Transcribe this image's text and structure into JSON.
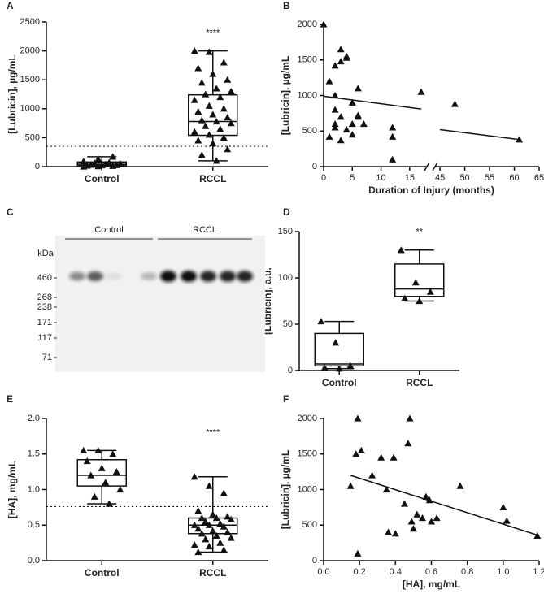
{
  "chart_data": [
    {
      "panel": "A",
      "type": "box",
      "ylabel": "[Lubricin], µg/mL",
      "categories": [
        "Control",
        "RCCL"
      ],
      "boxes": [
        {
          "min": 0,
          "q1": 20,
          "median": 40,
          "q3": 80,
          "max": 170
        },
        {
          "min": 100,
          "q1": 540,
          "median": 780,
          "q3": 1240,
          "max": 2000
        }
      ],
      "points": [
        [
          0,
          5,
          10,
          15,
          20,
          25,
          30,
          40,
          50,
          60,
          70,
          90,
          130,
          170
        ],
        [
          2000,
          1980,
          1800,
          1700,
          1600,
          1500,
          1450,
          1350,
          1300,
          1250,
          1200,
          1150,
          1050,
          1000,
          950,
          900,
          850,
          800,
          780,
          750,
          700,
          650,
          600,
          550,
          500,
          450,
          400,
          300,
          200,
          100
        ]
      ],
      "reference_line": 350,
      "annotation": "****",
      "ylim": [
        0,
        2500
      ],
      "yticks": [
        0,
        500,
        1000,
        1500,
        2000,
        2500
      ]
    },
    {
      "panel": "B",
      "type": "scatter",
      "ylabel": "[Lubricin], µg/mL",
      "xlabel": "Duration of Injury (months)",
      "x": [
        0,
        1,
        1,
        2,
        2,
        2,
        2,
        2,
        3,
        3,
        3,
        3,
        4,
        4,
        4,
        5,
        5,
        5,
        6,
        6,
        6,
        7,
        12,
        12,
        12,
        17,
        48,
        61
      ],
      "y": [
        2000,
        1200,
        420,
        1420,
        1000,
        800,
        550,
        600,
        1650,
        1480,
        370,
        700,
        1530,
        520,
        1550,
        450,
        900,
        600,
        1100,
        720,
        700,
        600,
        550,
        100,
        420,
        1050,
        880,
        380
      ],
      "trend_lines": [
        {
          "x": [
            0,
            17
          ],
          "y": [
            990,
            810
          ]
        },
        {
          "x": [
            45,
            61
          ],
          "y": [
            520,
            380
          ]
        }
      ],
      "xlim": [
        0,
        65
      ],
      "x_break": [
        18,
        44
      ],
      "xticks": [
        0,
        5,
        10,
        15,
        45,
        50,
        55,
        60,
        65
      ],
      "ylim": [
        0,
        2000
      ],
      "yticks": [
        0,
        500,
        1000,
        1500,
        2000
      ]
    },
    {
      "panel": "D",
      "type": "box",
      "ylabel": "[Lubricin], a.u.",
      "categories": [
        "Control",
        "RCCL"
      ],
      "boxes": [
        {
          "min": 2,
          "q1": 5,
          "median": 7,
          "q3": 40,
          "max": 53
        },
        {
          "min": 75,
          "q1": 80,
          "median": 88,
          "q3": 115,
          "max": 130
        }
      ],
      "points": [
        [
          53,
          30,
          5,
          3,
          2
        ],
        [
          130,
          95,
          85,
          78,
          75
        ]
      ],
      "annotation": "**",
      "ylim": [
        0,
        150
      ],
      "yticks": [
        0,
        50,
        100,
        150
      ]
    },
    {
      "panel": "E",
      "type": "box",
      "ylabel": "[HA], mg/mL",
      "categories": [
        "Control",
        "RCCL"
      ],
      "boxes": [
        {
          "min": 0.8,
          "q1": 1.05,
          "median": 1.2,
          "q3": 1.42,
          "max": 1.55
        },
        {
          "min": 0.12,
          "q1": 0.38,
          "median": 0.5,
          "q3": 0.6,
          "max": 1.18
        }
      ],
      "points": [
        [
          1.55,
          1.55,
          1.5,
          1.4,
          1.3,
          1.25,
          1.2,
          1.1,
          1.0,
          0.9,
          0.8
        ],
        [
          1.18,
          1.05,
          0.95,
          0.7,
          0.65,
          0.62,
          0.6,
          0.6,
          0.58,
          0.55,
          0.52,
          0.5,
          0.5,
          0.48,
          0.45,
          0.42,
          0.4,
          0.38,
          0.35,
          0.32,
          0.3,
          0.25,
          0.22,
          0.2,
          0.15,
          0.12
        ]
      ],
      "reference_line": 0.76,
      "annotation": "****",
      "ylim": [
        0,
        2.0
      ],
      "yticks": [
        {
          "value": 0,
          "label": "0.0"
        },
        0.5,
        {
          "value": 1,
          "label": "1.0"
        },
        1.5,
        {
          "value": 2,
          "label": "2.0"
        }
      ]
    },
    {
      "panel": "F",
      "type": "scatter",
      "ylabel": "[Lubricin], µg/mL",
      "xlabel": "[HA], mg/mL",
      "x": [
        0.15,
        0.18,
        0.19,
        0.21,
        0.19,
        0.27,
        0.32,
        0.35,
        0.36,
        0.39,
        0.4,
        0.45,
        0.47,
        0.48,
        0.49,
        0.5,
        0.52,
        0.55,
        0.57,
        0.59,
        0.6,
        0.63,
        0.76,
        1.0,
        1.02,
        1.19
      ],
      "y": [
        1050,
        1500,
        2000,
        1550,
        100,
        1200,
        1450,
        1000,
        400,
        1450,
        380,
        800,
        1650,
        2000,
        550,
        450,
        650,
        600,
        900,
        850,
        550,
        600,
        1050,
        750,
        560,
        350
      ],
      "trend_lines": [
        {
          "x": [
            0.15,
            1.19
          ],
          "y": [
            1200,
            360
          ]
        }
      ],
      "xlim": [
        0,
        1.2
      ],
      "xticks": [
        {
          "value": 0,
          "label": "0.0"
        },
        0.2,
        0.4,
        0.6,
        0.8,
        {
          "value": 1,
          "label": "1.0"
        },
        1.2
      ],
      "ylim": [
        0,
        2000
      ],
      "yticks": [
        0,
        500,
        1000,
        1500,
        2000
      ]
    }
  ],
  "blot": {
    "panel": "C",
    "groups": [
      "Control",
      "RCCL"
    ],
    "unit": "kDa",
    "markers": [
      460,
      268,
      238,
      171,
      117,
      71
    ]
  }
}
